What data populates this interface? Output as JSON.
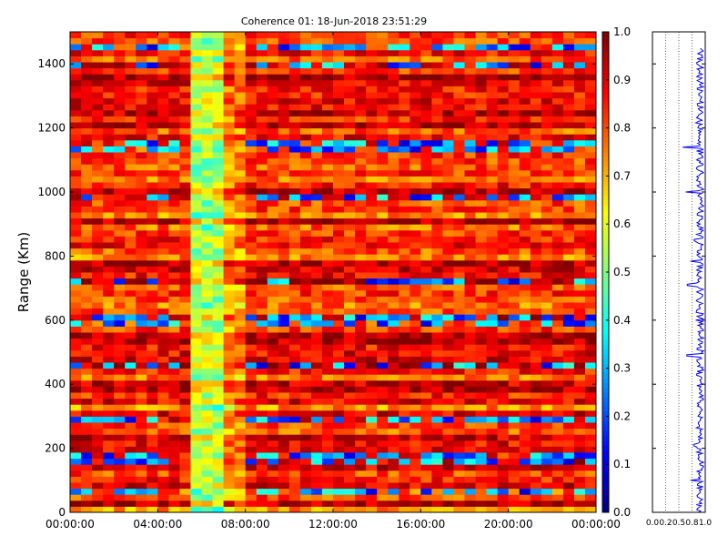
{
  "chart_data": [
    {
      "type": "heatmap",
      "title": "Coherence 01: 18-Jun-2018 23:51:29",
      "ylabel": "Range (Km)",
      "xlabel": "",
      "x_ticks": [
        "00:00:00",
        "04:00:00",
        "08:00:00",
        "12:00:00",
        "16:00:00",
        "20:00:00",
        "00:00:00"
      ],
      "x_range_hours": [
        0,
        24
      ],
      "ylim": [
        0,
        1500
      ],
      "y_ticks": [
        0,
        200,
        400,
        600,
        800,
        1000,
        1200,
        1400
      ],
      "value_range": [
        0.0,
        1.0
      ],
      "colormap": "jet",
      "colorbar_ticks": [
        "0.0",
        "0.1",
        "0.2",
        "0.3",
        "0.4",
        "0.5",
        "0.6",
        "0.7",
        "0.8",
        "0.9",
        "1.0"
      ],
      "regions": [
        {
          "hours": [
            0,
            5.5
          ],
          "typical_coherence": 0.85
        },
        {
          "hours": [
            5.5,
            7.0
          ],
          "typical_coherence": 0.55
        },
        {
          "hours": [
            7.0,
            8.2
          ],
          "typical_coherence": 0.75
        },
        {
          "hours": [
            8.2,
            24
          ],
          "typical_coherence": 0.85
        }
      ],
      "low_coherence_ranges_km": [
        70,
        155,
        180,
        290,
        465,
        600,
        725,
        990,
        1145,
        1400,
        1460
      ]
    },
    {
      "type": "line",
      "xlim": [
        0.0,
        1.0
      ],
      "x_ticks": [
        "0.0",
        "0.2",
        "0.5",
        "0.8",
        "1.0"
      ],
      "ylim": [
        0,
        1500
      ],
      "grid": true,
      "series_color": "#0000ff",
      "typical_value": 0.9,
      "dips": [
        {
          "range_km": 100,
          "value": 0.72
        },
        {
          "range_km": 210,
          "value": 0.78
        },
        {
          "range_km": 490,
          "value": 0.65
        },
        {
          "range_km": 600,
          "value": 0.82
        },
        {
          "range_km": 710,
          "value": 0.66
        },
        {
          "range_km": 785,
          "value": 0.72
        },
        {
          "range_km": 850,
          "value": 0.79
        },
        {
          "range_km": 1000,
          "value": 0.63
        },
        {
          "range_km": 1140,
          "value": 0.57
        },
        {
          "range_km": 1215,
          "value": 0.82
        },
        {
          "range_km": 1400,
          "value": 0.84
        }
      ]
    }
  ]
}
